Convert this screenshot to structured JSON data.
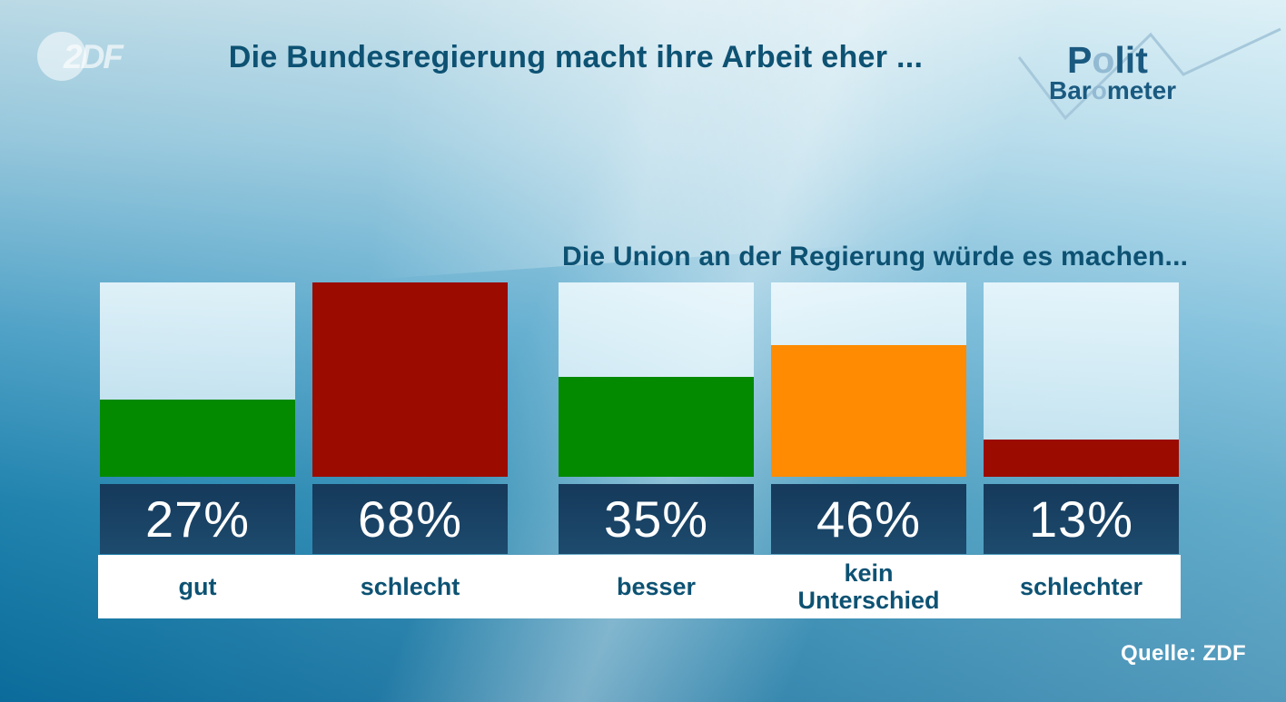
{
  "header": {
    "title": "Die Bundesregierung macht ihre Arbeit eher ...",
    "zdf_logo_text": "2DF",
    "polit_logo": {
      "line1_parts": [
        "P",
        "o",
        "lit"
      ],
      "line2_parts": [
        "Bar",
        "o",
        "meter"
      ]
    }
  },
  "subtitle": "Die Union an der Regierung würde es machen...",
  "footer": {
    "source": "Quelle: ZDF"
  },
  "colors": {
    "heading_text": "#0d5273",
    "value_band_navy": "#15395a",
    "positive_green": "#038a00",
    "negative_red": "#9b0b00",
    "neutral_orange": "#fe8b01",
    "polit_logo_dark": "#1b5a80",
    "polit_logo_light": "#93bad3",
    "zigzag_line": "#a6c8db"
  },
  "chart_data": {
    "type": "bar",
    "title": "Die Bundesregierung macht ihre Arbeit eher ...",
    "subtitle": "Die Union an der Regierung würde es machen...",
    "unit": "%",
    "ylim": [
      0,
      68
    ],
    "legend_position": "none",
    "grid": false,
    "groups": [
      {
        "bars": [
          {
            "label": "gut",
            "value": 27,
            "value_label": "27%",
            "color": "#038a00"
          },
          {
            "label": "schlecht",
            "value": 68,
            "value_label": "68%",
            "color": "#9b0b00"
          }
        ]
      },
      {
        "bars": [
          {
            "label": "besser",
            "value": 35,
            "value_label": "35%",
            "color": "#038a00"
          },
          {
            "label": "kein Unterschied",
            "value": 46,
            "value_label": "46%",
            "color": "#fe8b01"
          },
          {
            "label": "schlechter",
            "value": 13,
            "value_label": "13%",
            "color": "#9b0b00"
          }
        ]
      }
    ]
  }
}
